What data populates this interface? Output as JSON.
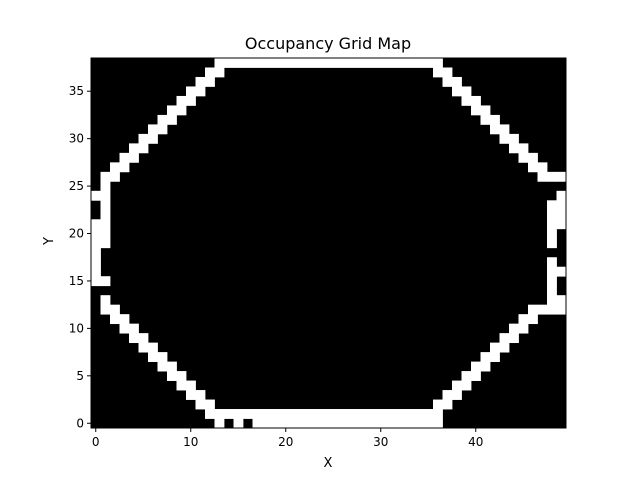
{
  "chart_data": {
    "type": "heatmap",
    "title": "Occupancy Grid Map",
    "xlabel": "X",
    "ylabel": "Y",
    "grid_width": 50,
    "grid_height": 39,
    "xlim": [
      -0.5,
      49.5
    ],
    "ylim": [
      -0.5,
      38.5
    ],
    "xticks": [
      0,
      10,
      20,
      30,
      40
    ],
    "yticks": [
      0,
      5,
      10,
      15,
      20,
      25,
      30,
      35
    ],
    "colormap": {
      "0": "#000000",
      "1": "#ffffff"
    },
    "occupied_segments": [
      {
        "y": 0,
        "x_ranges": [
          [
            13,
            13
          ],
          [
            15,
            15
          ],
          [
            17,
            36
          ]
        ]
      },
      {
        "y": 1,
        "x_ranges": [
          [
            12,
            36
          ]
        ]
      },
      {
        "y": 2,
        "x_ranges": [
          [
            11,
            12
          ],
          [
            36,
            37
          ]
        ]
      },
      {
        "y": 3,
        "x_ranges": [
          [
            10,
            11
          ],
          [
            37,
            38
          ]
        ]
      },
      {
        "y": 4,
        "x_ranges": [
          [
            9,
            10
          ],
          [
            38,
            39
          ]
        ]
      },
      {
        "y": 5,
        "x_ranges": [
          [
            8,
            9
          ],
          [
            39,
            40
          ]
        ]
      },
      {
        "y": 6,
        "x_ranges": [
          [
            7,
            8
          ],
          [
            40,
            41
          ]
        ]
      },
      {
        "y": 7,
        "x_ranges": [
          [
            6,
            7
          ],
          [
            41,
            42
          ]
        ]
      },
      {
        "y": 8,
        "x_ranges": [
          [
            5,
            6
          ],
          [
            42,
            43
          ]
        ]
      },
      {
        "y": 9,
        "x_ranges": [
          [
            4,
            5
          ],
          [
            43,
            44
          ]
        ]
      },
      {
        "y": 10,
        "x_ranges": [
          [
            3,
            4
          ],
          [
            44,
            45
          ]
        ]
      },
      {
        "y": 11,
        "x_ranges": [
          [
            2,
            3
          ],
          [
            45,
            46
          ]
        ]
      },
      {
        "y": 12,
        "x_ranges": [
          [
            1,
            2
          ],
          [
            46,
            49
          ]
        ]
      },
      {
        "y": 13,
        "x_ranges": [
          [
            1,
            1
          ],
          [
            48,
            49
          ]
        ]
      },
      {
        "y": 14,
        "x_ranges": [
          [
            48,
            48
          ]
        ]
      },
      {
        "y": 15,
        "x_ranges": [
          [
            0,
            1
          ],
          [
            48,
            48
          ]
        ]
      },
      {
        "y": 16,
        "x_ranges": [
          [
            0,
            0
          ],
          [
            48,
            49
          ]
        ]
      },
      {
        "y": 17,
        "x_ranges": [
          [
            0,
            0
          ],
          [
            48,
            48
          ]
        ]
      },
      {
        "y": 18,
        "x_ranges": [
          [
            0,
            0
          ]
        ]
      },
      {
        "y": 19,
        "x_ranges": [
          [
            0,
            1
          ],
          [
            48,
            48
          ]
        ]
      },
      {
        "y": 20,
        "x_ranges": [
          [
            0,
            1
          ],
          [
            48,
            48
          ]
        ]
      },
      {
        "y": 21,
        "x_ranges": [
          [
            0,
            1
          ],
          [
            48,
            49
          ]
        ]
      },
      {
        "y": 22,
        "x_ranges": [
          [
            1,
            1
          ],
          [
            48,
            49
          ]
        ]
      },
      {
        "y": 23,
        "x_ranges": [
          [
            1,
            1
          ],
          [
            48,
            49
          ]
        ]
      },
      {
        "y": 24,
        "x_ranges": [
          [
            0,
            1
          ],
          [
            49,
            49
          ]
        ]
      },
      {
        "y": 25,
        "x_ranges": [
          [
            1,
            1
          ]
        ]
      },
      {
        "y": 26,
        "x_ranges": [
          [
            1,
            2
          ],
          [
            47,
            49
          ]
        ]
      },
      {
        "y": 27,
        "x_ranges": [
          [
            2,
            3
          ],
          [
            46,
            47
          ]
        ]
      },
      {
        "y": 28,
        "x_ranges": [
          [
            3,
            4
          ],
          [
            45,
            46
          ]
        ]
      },
      {
        "y": 29,
        "x_ranges": [
          [
            4,
            5
          ],
          [
            44,
            45
          ]
        ]
      },
      {
        "y": 30,
        "x_ranges": [
          [
            5,
            6
          ],
          [
            43,
            44
          ]
        ]
      },
      {
        "y": 31,
        "x_ranges": [
          [
            6,
            7
          ],
          [
            42,
            43
          ]
        ]
      },
      {
        "y": 32,
        "x_ranges": [
          [
            7,
            8
          ],
          [
            41,
            42
          ]
        ]
      },
      {
        "y": 33,
        "x_ranges": [
          [
            8,
            9
          ],
          [
            40,
            41
          ]
        ]
      },
      {
        "y": 34,
        "x_ranges": [
          [
            9,
            10
          ],
          [
            39,
            40
          ]
        ]
      },
      {
        "y": 35,
        "x_ranges": [
          [
            10,
            11
          ],
          [
            38,
            39
          ]
        ]
      },
      {
        "y": 36,
        "x_ranges": [
          [
            11,
            12
          ],
          [
            37,
            38
          ]
        ]
      },
      {
        "y": 37,
        "x_ranges": [
          [
            12,
            13
          ],
          [
            36,
            37
          ]
        ]
      },
      {
        "y": 38,
        "x_ranges": [
          [
            13,
            36
          ]
        ]
      }
    ]
  }
}
